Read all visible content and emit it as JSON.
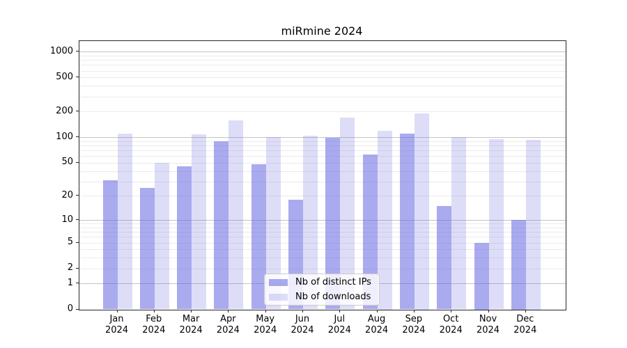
{
  "title": "miRmine 2024",
  "chart_data": {
    "type": "bar",
    "title": "miRmine 2024",
    "categories": [
      "Jan 2024",
      "Feb 2024",
      "Mar 2024",
      "Apr 2024",
      "May 2024",
      "Jun 2024",
      "Jul 2024",
      "Aug 2024",
      "Sep 2024",
      "Oct 2024",
      "Nov 2024",
      "Dec 2024"
    ],
    "months": [
      "Jan",
      "Feb",
      "Mar",
      "Apr",
      "May",
      "Jun",
      "Jul",
      "Aug",
      "Sep",
      "Oct",
      "Nov",
      "Dec"
    ],
    "year": "2024",
    "series": [
      {
        "name": "Nb of distinct IPs",
        "color": "rgba(100,100,225,0.55)",
        "values": [
          31,
          25,
          45,
          90,
          48,
          18,
          99,
          63,
          110,
          15,
          5,
          10
        ]
      },
      {
        "name": "Nb of downloads",
        "color": "rgba(100,100,225,0.22)",
        "values": [
          111,
          50,
          108,
          158,
          101,
          104,
          170,
          120,
          190,
          100,
          95,
          93
        ]
      }
    ],
    "y_scale": "log10(1+x)",
    "y_ticks": [
      0,
      1,
      2,
      5,
      10,
      20,
      50,
      100,
      200,
      500,
      1000
    ],
    "y_major_gridlines": [
      1,
      10,
      100,
      1000
    ],
    "ylim": [
      0,
      1330
    ],
    "xlabel": "",
    "ylabel": "",
    "grid": true,
    "legend_position": "lower center",
    "colors": {
      "bar_distinct_ips": "rgba(100,100,225,0.55)",
      "bar_downloads": "rgba(100,100,225,0.22)",
      "grid_major": "#c3c3c3",
      "grid_minor": "#ebebeb",
      "spine": "#262626"
    }
  }
}
